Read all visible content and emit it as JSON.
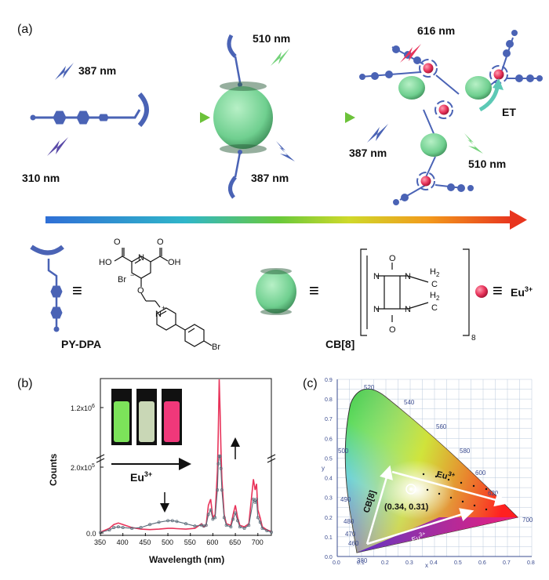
{
  "panel_a": {
    "label": "(a)",
    "wavelengths": {
      "w387_top": "387 nm",
      "w310": "310 nm",
      "w510_mid": "510 nm",
      "w387_mid": "387 nm",
      "w616": "616 nm",
      "w387_right": "387 nm",
      "w510_right": "510 nm"
    },
    "et_label": "ET",
    "legend": {
      "equiv": "≡",
      "pydpa_name": "PY-DPA",
      "cb8_name": "CB[8]",
      "eu_label": "Eu",
      "eu_sup": "3+",
      "chem": {
        "oh_left": "HO",
        "oh_right": "OH",
        "o_left": "O",
        "o_right": "O",
        "n_ring": "N",
        "br_ion": "Br",
        "br_minus": "−",
        "o_ether": "O",
        "n_plus": "N",
        "plus": "+",
        "br_aryl": "Br",
        "cb_o_top": "O",
        "cb_o_bot": "O",
        "cb_n1": "N",
        "cb_n2": "N",
        "cb_n3": "N",
        "cb_n4": "N",
        "cb_h2_top": "H",
        "cb_h2_bot": "H",
        "cb_sub2": "2",
        "cb_c": "C",
        "cb_subscript": "8"
      }
    },
    "colors": {
      "molecule": "#4a63b5",
      "cb8": "#8fd9a8",
      "eu": "#e8335a",
      "green_arrow": "#8bd14a"
    }
  },
  "panel_b": {
    "label": "(b)",
    "y_ticks": {
      "top": "1.2x10",
      "top_exp": "6",
      "mid": "2.0x10",
      "mid_exp": "5",
      "zero": "0.0"
    },
    "ylabel": "Counts",
    "xlabel": "Wavelength (nm)",
    "x_ticks": [
      "350",
      "400",
      "450",
      "500",
      "550",
      "600",
      "650",
      "700"
    ],
    "eu_arrow_label": "Eu",
    "eu_arrow_sup": "3+",
    "vial_colors": [
      "#7ce35a",
      "#c9d7b6",
      "#f0387a"
    ]
  },
  "panel_c": {
    "label": "(c)",
    "x_ticks": [
      "0.0",
      "0.1",
      "0.2",
      "0.3",
      "0.4",
      "0.5",
      "0.6",
      "0.7",
      "0.8"
    ],
    "y_ticks": [
      "0.0",
      "0.1",
      "0.2",
      "0.3",
      "0.4",
      "0.5",
      "0.6",
      "0.7",
      "0.8",
      "0.9"
    ],
    "xlabel": "x",
    "ylabel": "y",
    "locus_labels": [
      "520",
      "540",
      "560",
      "580",
      "600",
      "620",
      "700",
      "500",
      "490",
      "480",
      "470",
      "460",
      "380"
    ],
    "cb8_label": "CB[8]",
    "eu_label_top": "Eu",
    "eu_label_top_sup": "3+",
    "eu_label_bottom": "Eu",
    "eu_label_bottom_sup": "3+",
    "point_label": "(0.34, 0.31)"
  },
  "chart_data": {
    "type": "line",
    "title": "",
    "xlabel": "Wavelength (nm)",
    "ylabel": "Counts",
    "xlim": [
      350,
      730
    ],
    "series": [
      {
        "name": "",
        "color": "#e8335a",
        "x": [
          350,
          370,
          380,
          390,
          400,
          420,
          440,
          460,
          480,
          500,
          510,
          520,
          540,
          560,
          575,
          580,
          585,
          590,
          595,
          600,
          605,
          610,
          612,
          614,
          616,
          618,
          620,
          625,
          630,
          640,
          645,
          650,
          655,
          660,
          670,
          680,
          690,
          694,
          697,
          700,
          705,
          710,
          720,
          730
        ],
        "y": [
          0.005,
          0.03,
          0.055,
          0.065,
          0.055,
          0.035,
          0.025,
          0.022,
          0.025,
          0.03,
          0.03,
          0.028,
          0.025,
          0.03,
          0.06,
          0.04,
          0.05,
          0.18,
          0.22,
          0.1,
          0.12,
          0.4,
          0.65,
          1.0,
          0.8,
          0.55,
          0.35,
          0.12,
          0.06,
          0.05,
          0.12,
          0.18,
          0.1,
          0.05,
          0.04,
          0.06,
          0.35,
          0.28,
          0.32,
          0.15,
          0.1,
          0.04,
          0.02,
          0.01
        ]
      },
      {
        "name": "",
        "color": "#5a6a78",
        "x": [
          350,
          370,
          380,
          390,
          400,
          420,
          440,
          460,
          480,
          500,
          510,
          520,
          540,
          560,
          575,
          580,
          585,
          590,
          595,
          600,
          605,
          610,
          612,
          614,
          616,
          618,
          620,
          625,
          630,
          640,
          645,
          650,
          655,
          660,
          670,
          680,
          690,
          694,
          697,
          700,
          705,
          710,
          720,
          730
        ],
        "y": [
          0.003,
          0.02,
          0.035,
          0.04,
          0.035,
          0.03,
          0.035,
          0.055,
          0.07,
          0.08,
          0.08,
          0.075,
          0.06,
          0.045,
          0.05,
          0.045,
          0.05,
          0.12,
          0.15,
          0.09,
          0.1,
          0.28,
          0.45,
          0.5,
          0.5,
          0.42,
          0.28,
          0.1,
          0.05,
          0.04,
          0.09,
          0.13,
          0.08,
          0.04,
          0.03,
          0.05,
          0.22,
          0.2,
          0.22,
          0.1,
          0.07,
          0.03,
          0.015,
          0.005
        ]
      }
    ]
  }
}
